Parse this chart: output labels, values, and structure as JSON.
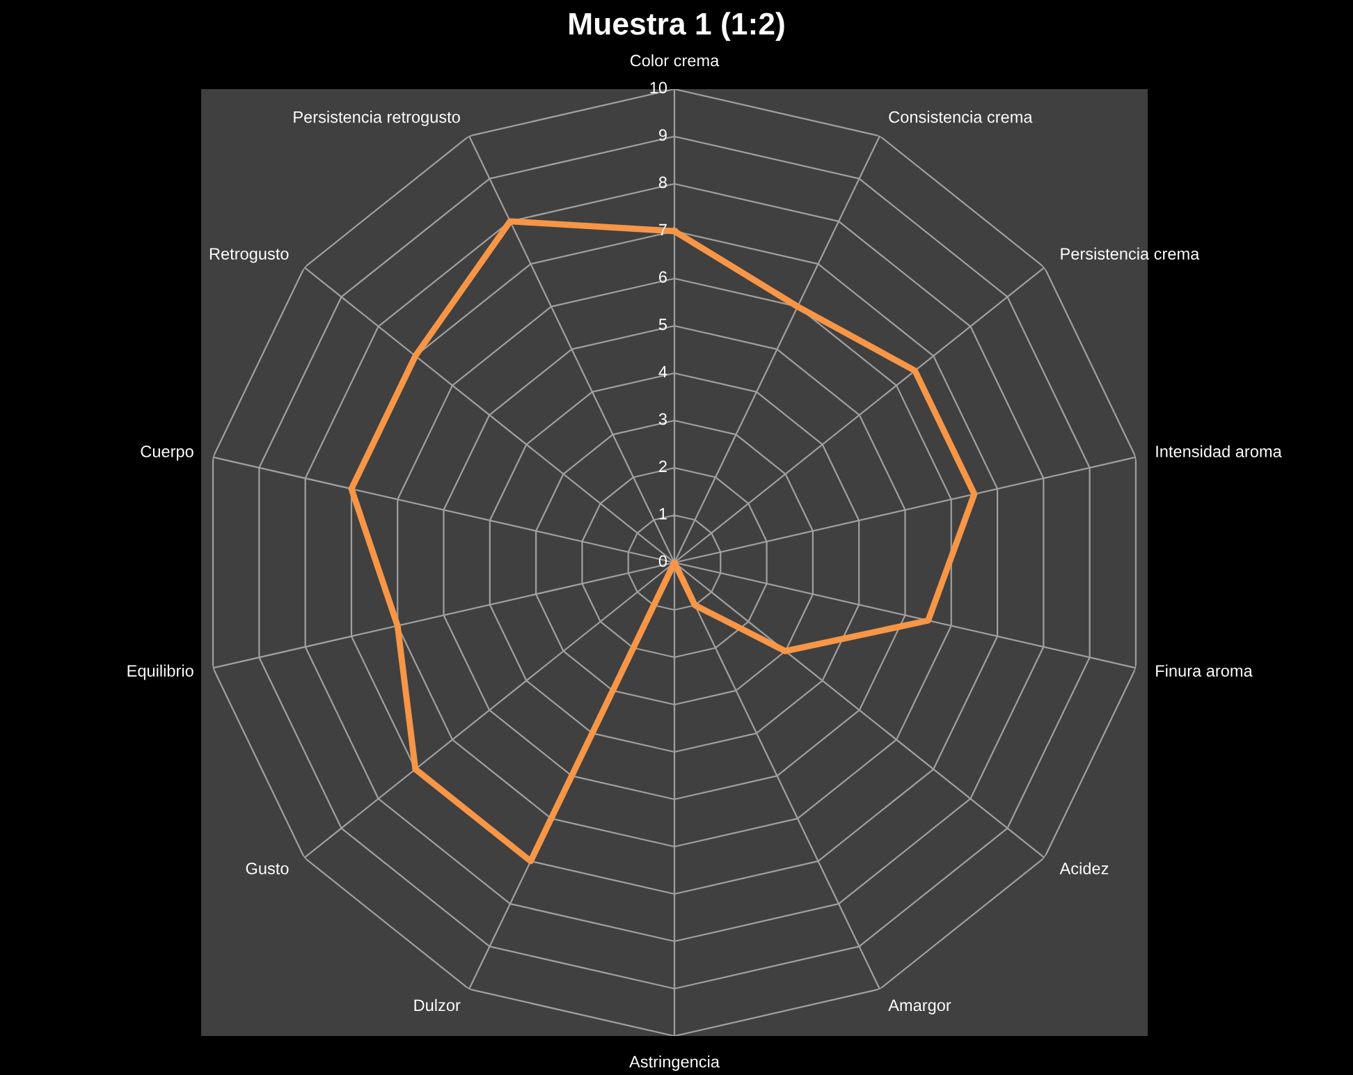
{
  "chart_data": {
    "type": "radar",
    "title": "Muestra 1 (1:2)",
    "categories": [
      "Color crema",
      "Consistencia crema",
      "Persistencia crema",
      "Intensidad aroma",
      "Finura aroma",
      "Acidez",
      "Amargor",
      "Astringencia",
      "Dulzor",
      "Gusto",
      "Equilibrio",
      "Cuerpo",
      "Retrogusto",
      "Persistencia retrogusto"
    ],
    "series": [
      {
        "color": "#f79646",
        "values": [
          7,
          6,
          6.5,
          6.5,
          5.5,
          3,
          1,
          0,
          7,
          7,
          6,
          7,
          7,
          8
        ]
      }
    ],
    "ylim": [
      0,
      10
    ],
    "yticks": [
      0,
      1,
      2,
      3,
      4,
      5,
      6,
      7,
      8,
      9,
      10
    ],
    "grid": true
  }
}
